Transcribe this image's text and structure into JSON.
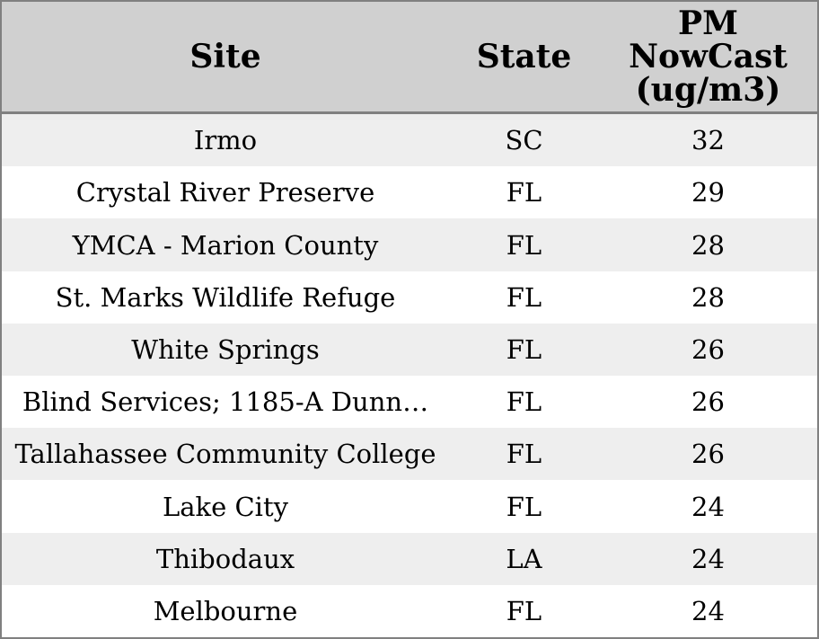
{
  "chart_data": {
    "type": "table",
    "columns": [
      {
        "label": "Site"
      },
      {
        "label": "State"
      },
      {
        "label": "PM NowCast (ug/m3)",
        "label_lines": [
          "PM",
          "NowCast",
          "(ug/m3)"
        ]
      }
    ],
    "rows": [
      {
        "site": "Irmo",
        "state": "SC",
        "pm_nowcast": 32
      },
      {
        "site": "Crystal River Preserve",
        "state": "FL",
        "pm_nowcast": 29
      },
      {
        "site": "YMCA - Marion County",
        "state": "FL",
        "pm_nowcast": 28
      },
      {
        "site": "St. Marks Wildlife Refuge",
        "state": "FL",
        "pm_nowcast": 28
      },
      {
        "site": "White Springs",
        "state": "FL",
        "pm_nowcast": 26
      },
      {
        "site": "Blind Services; 1185-A Dunn…",
        "state": "FL",
        "pm_nowcast": 26
      },
      {
        "site": "Tallahassee Community College",
        "state": "FL",
        "pm_nowcast": 26
      },
      {
        "site": "Lake City",
        "state": "FL",
        "pm_nowcast": 24
      },
      {
        "site": "Thibodaux",
        "state": "LA",
        "pm_nowcast": 24
      },
      {
        "site": "Melbourne",
        "state": "FL",
        "pm_nowcast": 24
      }
    ]
  },
  "colors": {
    "header_bg": "#d0d0d0",
    "border": "#808080",
    "row_alt_bg": "#eeeeee",
    "row_bg": "#ffffff",
    "text": "#000000"
  }
}
